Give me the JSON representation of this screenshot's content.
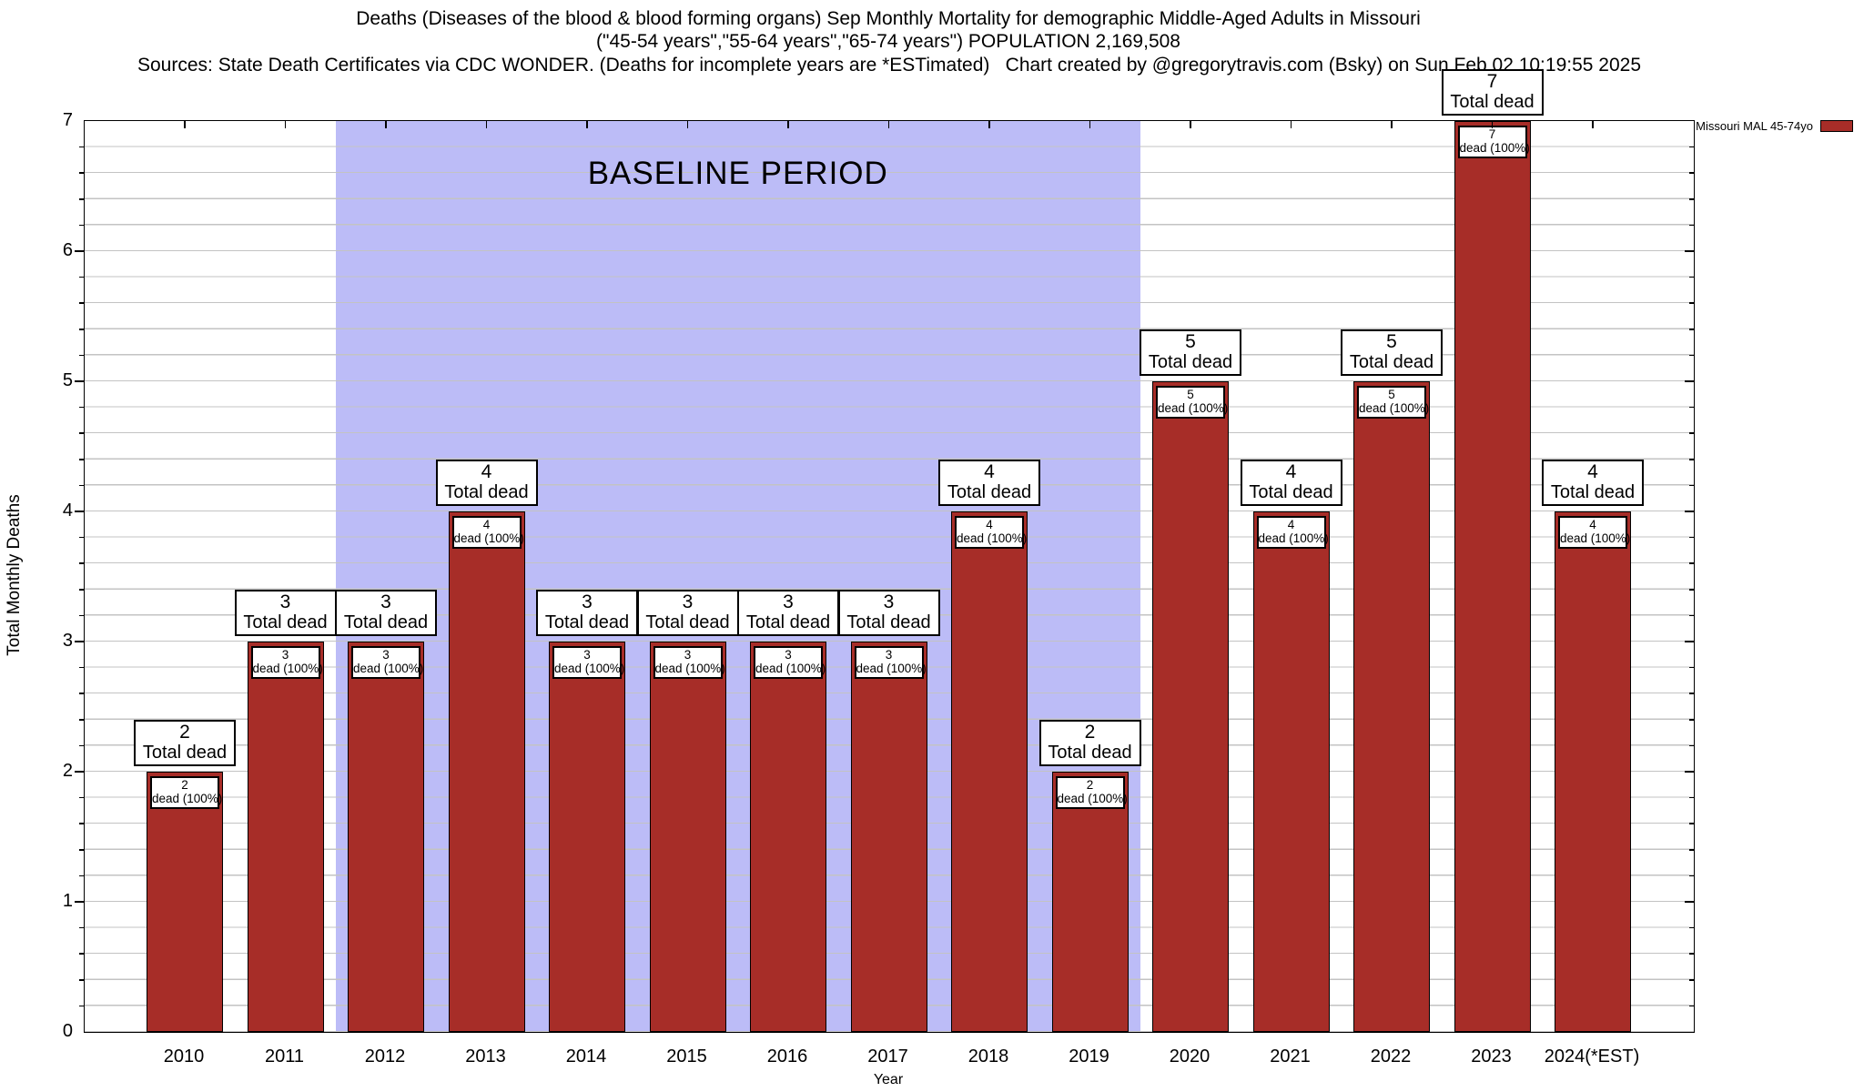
{
  "titles": {
    "line1": "Deaths (Diseases of the blood & blood forming organs) Sep Monthly Mortality for demographic Middle-Aged Adults in Missouri",
    "line2": "(\"45-54 years\",\"55-64 years\",\"65-74 years\") POPULATION 2,169,508",
    "line3_left": "Sources: State Death Certificates via CDC WONDER. (Deaths for incomplete years are *ESTimated)",
    "line3_right": "Chart created by @gregorytravis.com (Bsky) on Sun Feb 02 10:19:55 2025"
  },
  "legend": {
    "label": "Missouri MAL 45-74yo",
    "swatch_color": "#a72d28"
  },
  "y_axis": {
    "title": "Total Monthly Deaths",
    "ticks": [
      0,
      1,
      2,
      3,
      4,
      5,
      6,
      7
    ],
    "max": 7,
    "minor_step": 0.2
  },
  "x_axis": {
    "title": "Year"
  },
  "baseline_region": {
    "label": "BASELINE PERIOD",
    "from": "2012",
    "to": "2019",
    "color": "#bcbcf7"
  },
  "bar_labels": {
    "above_suffix": "Total dead",
    "inner_suffix": "dead (100%)"
  },
  "chart_data": {
    "type": "bar",
    "title": "Deaths (Diseases of the blood & blood forming organs) Sep Monthly Mortality for demographic Middle-Aged Adults in Missouri",
    "subtitle": "(\"45-54 years\",\"55-64 years\",\"65-74 years\") POPULATION 2,169,508",
    "categories": [
      "2010",
      "2011",
      "2012",
      "2013",
      "2014",
      "2015",
      "2016",
      "2017",
      "2018",
      "2019",
      "2020",
      "2021",
      "2022",
      "2023",
      "2024(*EST)"
    ],
    "series": [
      {
        "name": "Missouri MAL 45-74yo",
        "values": [
          2,
          3,
          3,
          4,
          3,
          3,
          3,
          3,
          4,
          2,
          5,
          4,
          5,
          7,
          4
        ]
      }
    ],
    "xlabel": "Year",
    "ylabel": "Total Monthly Deaths",
    "ylim": [
      0,
      7
    ],
    "y_tick_step": 1,
    "y_minor_grid_step": 0.2,
    "grid": "horizontal",
    "legend_position": "top-right-outside",
    "bar_color": "#a72d28",
    "baseline_region": {
      "label": "BASELINE PERIOD",
      "from": "2012",
      "to": "2019",
      "color": "#bcbcf7"
    },
    "bar_annotations": {
      "above_format": "{value} Total dead",
      "inner_format": "{value} dead (100%)"
    }
  }
}
